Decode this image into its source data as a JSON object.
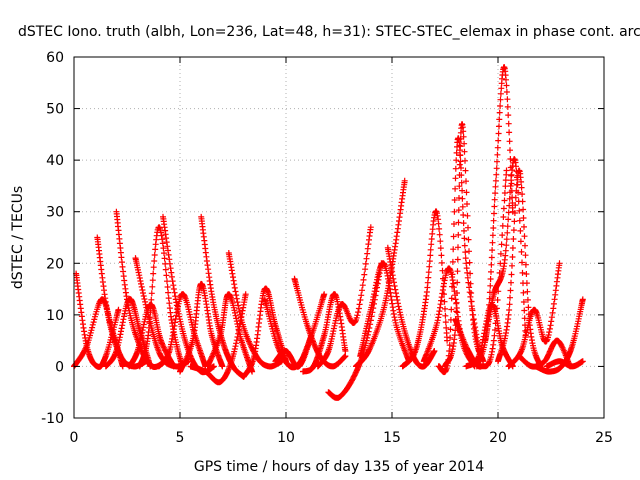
{
  "chart_data": {
    "type": "scatter",
    "title": "dSTEC Iono. truth (albh, Lon=236, Lat=48, h=31): STEC-STEC_elemax in phase cont. arc",
    "xlabel": "GPS time / hours of day 135 of year 2014",
    "ylabel": "dSTEC  / TECUs",
    "xlim": [
      0,
      25
    ],
    "ylim": [
      -10,
      60
    ],
    "xticks": [
      0,
      5,
      10,
      15,
      20,
      25
    ],
    "yticks": [
      -10,
      0,
      10,
      20,
      30,
      40,
      50,
      60
    ],
    "grid": true,
    "marker": "+",
    "colors": {
      "series": "#ff0000",
      "grid": "#b0b0b0",
      "axis": "#000000"
    },
    "series": [
      {
        "name": "",
        "arcs": [
          {
            "x": [
              0.1,
              0.6,
              1.1,
              1.5,
              2.1
            ],
            "y": [
              18,
              4,
              0,
              2,
              11
            ]
          },
          {
            "x": [
              0.0,
              0.6,
              1.3,
              1.8,
              2.3
            ],
            "y": [
              0,
              4,
              13,
              7,
              0
            ]
          },
          {
            "x": [
              1.1,
              1.6,
              2.2,
              2.8,
              3.4
            ],
            "y": [
              25,
              10,
              2,
              0,
              1
            ]
          },
          {
            "x": [
              1.5,
              2.0,
              2.6,
              3.1,
              3.6
            ],
            "y": [
              0,
              3,
              13,
              7,
              0
            ]
          },
          {
            "x": [
              2.0,
              2.5,
              3.1,
              3.7,
              4.3
            ],
            "y": [
              30,
              13,
              4,
              0,
              1
            ]
          },
          {
            "x": [
              2.6,
              3.0,
              3.6,
              4.1,
              4.7
            ],
            "y": [
              0,
              3,
              12,
              5,
              0
            ]
          },
          {
            "x": [
              2.9,
              3.5,
              4.1,
              4.8,
              5.4
            ],
            "y": [
              21,
              10,
              2,
              0,
              1
            ]
          },
          {
            "x": [
              3.1,
              3.5,
              4.0,
              4.6,
              5.1
            ],
            "y": [
              0,
              6,
              27,
              9,
              0
            ]
          },
          {
            "x": [
              4.2,
              4.8,
              5.4,
              6.0,
              6.6
            ],
            "y": [
              29,
              13,
              3,
              -1,
              0
            ]
          },
          {
            "x": [
              4.0,
              4.5,
              5.1,
              5.7,
              6.2
            ],
            "y": [
              0,
              3,
              14,
              6,
              0
            ]
          },
          {
            "x": [
              5.0,
              5.6,
              6.0,
              6.5,
              7.0
            ],
            "y": [
              -1,
              5,
              16,
              6,
              0
            ]
          },
          {
            "x": [
              6.0,
              6.5,
              7.0,
              7.5,
              8.0
            ],
            "y": [
              29,
              14,
              5,
              0,
              -2
            ]
          },
          {
            "x": [
              5.5,
              6.2,
              6.9,
              7.5,
              8.1
            ],
            "y": [
              0,
              -1,
              -3,
              2,
              14
            ]
          },
          {
            "x": [
              6.3,
              6.9,
              7.3,
              7.9,
              8.4
            ],
            "y": [
              0,
              6,
              14,
              5,
              -1
            ]
          },
          {
            "x": [
              7.3,
              7.9,
              8.6,
              9.2,
              9.8
            ],
            "y": [
              22,
              9,
              2,
              0,
              1
            ]
          },
          {
            "x": [
              8.0,
              8.5,
              9.0,
              9.5,
              10.0
            ],
            "y": [
              -2,
              2,
              15,
              8,
              1
            ]
          },
          {
            "x": [
              9.0,
              9.6,
              10.2,
              10.7,
              11.2
            ],
            "y": [
              13,
              4,
              0,
              1,
              6
            ]
          },
          {
            "x": [
              9.5,
              10.0,
              10.6,
              11.2,
              11.8
            ],
            "y": [
              1,
              3,
              0,
              6,
              14
            ]
          },
          {
            "x": [
              10.4,
              11.0,
              11.6,
              12.2,
              12.8
            ],
            "y": [
              17,
              8,
              2,
              0,
              2
            ]
          },
          {
            "x": [
              10.8,
              11.3,
              11.8,
              12.3,
              12.8
            ],
            "y": [
              -1,
              0,
              6,
              14,
              3
            ]
          },
          {
            "x": [
              12.0,
              12.5,
              13.2,
              13.8,
              14.5
            ],
            "y": [
              -5,
              -6,
              -2,
              5,
              20
            ]
          },
          {
            "x": [
              11.5,
              12.0,
              12.6,
              13.3,
              14.0
            ],
            "y": [
              0,
              3,
              12,
              9,
              27
            ]
          },
          {
            "x": [
              13.3,
              13.9,
              14.6,
              15.1,
              15.6
            ],
            "y": [
              0,
              3,
              11,
              22,
              36
            ]
          },
          {
            "x": [
              13.5,
              14.0,
              14.6,
              15.2,
              15.8
            ],
            "y": [
              2,
              11,
              20,
              8,
              1
            ]
          },
          {
            "x": [
              14.8,
              15.4,
              16.0,
              16.5,
              17.0
            ],
            "y": [
              23,
              10,
              2,
              0,
              3
            ]
          },
          {
            "x": [
              15.5,
              16.1,
              16.6,
              17.1,
              17.6
            ],
            "y": [
              0,
              3,
              13,
              30,
              5
            ]
          },
          {
            "x": [
              16.5,
              17.1,
              17.7,
              18.3,
              18.9
            ],
            "y": [
              1,
              8,
              19,
              5,
              0
            ]
          },
          {
            "x": [
              17.2,
              17.7,
              18.1,
              18.5,
              19.1
            ],
            "y": [
              0,
              3,
              44,
              20,
              3
            ]
          },
          {
            "x": [
              17.5,
              18.0,
              18.3,
              18.8,
              19.3
            ],
            "y": [
              0,
              8,
              47,
              10,
              1
            ]
          },
          {
            "x": [
              18.0,
              18.6,
              19.2,
              19.8,
              20.4
            ],
            "y": [
              9,
              3,
              0,
              5,
              38
            ]
          },
          {
            "x": [
              18.5,
              19.1,
              19.7,
              20.2,
              20.7
            ],
            "y": [
              0,
              2,
              12,
              4,
              0
            ]
          },
          {
            "x": [
              19.0,
              19.5,
              19.9,
              20.3,
              20.7
            ],
            "y": [
              0,
              8,
              36,
              58,
              30
            ]
          },
          {
            "x": [
              19.4,
              19.8,
              20.3,
              20.8,
              21.3
            ],
            "y": [
              5,
              14,
              20,
              40,
              6
            ]
          },
          {
            "x": [
              20.0,
              20.5,
              21.0,
              21.5,
              22.0
            ],
            "y": [
              1,
              10,
              38,
              8,
              0
            ]
          },
          {
            "x": [
              20.5,
              21.1,
              21.7,
              22.3,
              22.9
            ],
            "y": [
              0,
              3,
              11,
              5,
              20
            ]
          },
          {
            "x": [
              21.0,
              21.6,
              22.2,
              22.8,
              23.4
            ],
            "y": [
              2,
              0,
              1,
              5,
              0
            ]
          },
          {
            "x": [
              21.8,
              22.4,
              23.0,
              23.5,
              24.0
            ],
            "y": [
              0,
              -1,
              0,
              4,
              13
            ]
          },
          {
            "x": [
              22.3,
              22.9,
              23.5,
              24.0
            ],
            "y": [
              0,
              1,
              0,
              1
            ]
          }
        ]
      }
    ]
  }
}
